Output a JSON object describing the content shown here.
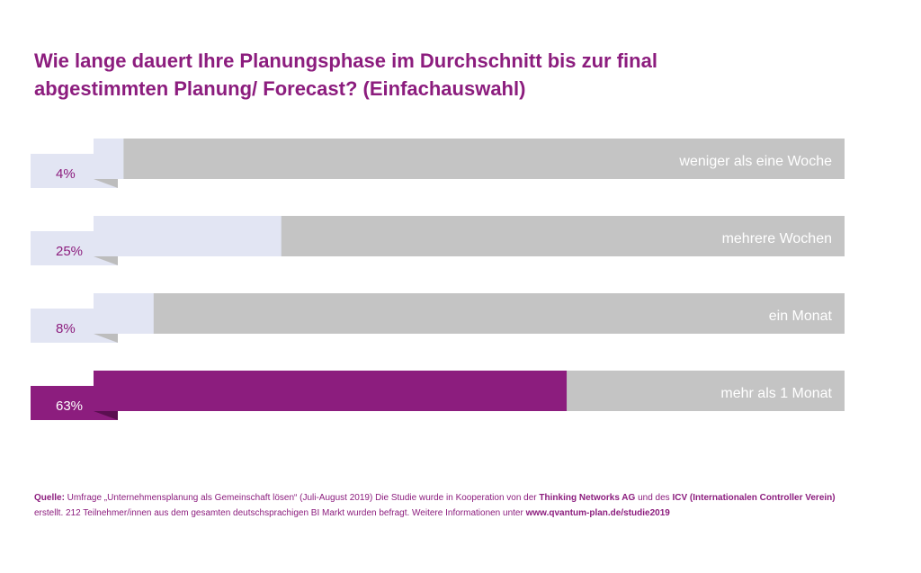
{
  "title_lines": [
    "Wie lange dauert Ihre Planungsphase im Durchschnitt bis zur final",
    "abgestimmten Planung/ Forecast? (Einfachauswahl)"
  ],
  "colors": {
    "accent": "#8c1d7e",
    "bar_light": "#e2e5f3",
    "bar_gray": "#c4c4c4",
    "fold_light": "#bdbdbd",
    "fold_dark": "#5b0f51",
    "label_on_dark": "#ffffff",
    "label_on_gray": "#ffffff"
  },
  "chart_data": {
    "type": "bar",
    "orientation": "horizontal",
    "categories": [
      "weniger als eine Woche",
      "mehrere Wochen",
      "ein Monat",
      "mehr als 1 Monat"
    ],
    "values": [
      4,
      25,
      8,
      63
    ],
    "value_labels": [
      "4%",
      "25%",
      "8%",
      "63%"
    ],
    "highlight_index": 3,
    "xlim": [
      0,
      100
    ]
  },
  "source": {
    "label": "Quelle:",
    "text1": " Umfrage „Unternehmensplanung als Gemeinschaft lösen“ (Juli-August 2019)  Die Studie wurde in Kooperation von der ",
    "org1": "Thinking Networks AG",
    "text2": " und des ",
    "org2": "ICV  (Internationalen Controller Verein)",
    "text3": "erstellt. 212 Teilnehmer/innen aus dem gesamten deutschsprachigen BI Markt wurden befragt. Weitere Informationen unter ",
    "url": "www.qvantum-plan.de/studie2019"
  }
}
